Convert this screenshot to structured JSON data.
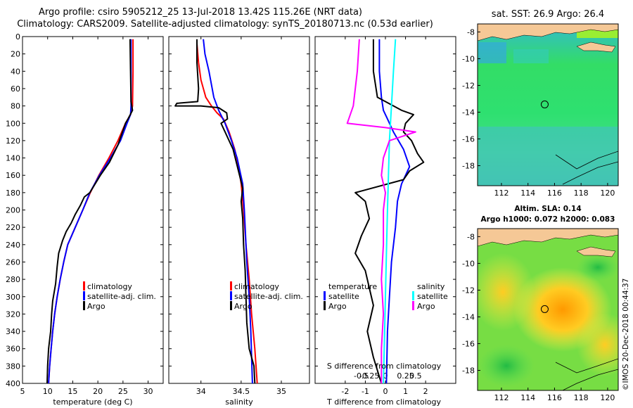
{
  "figure": {
    "title_line1": "Argo profile: csiro 5905212_25 13-Jul-2018 13.42S 115.26E (NRT data)",
    "title_line2": "Climatology: CARS2009. Satellite-adjusted climatology: synTS_20180713.nc (0.53d earlier)",
    "credit": "©IMOS 20-Dec-2018 00:44:37"
  },
  "colors": {
    "climatology": "#ff0000",
    "satellite": "#0000ff",
    "argo": "#000000",
    "salinity_diff": "#ff00ff",
    "satellite_sal_diff": "#00ffff",
    "sst_map": "#33ee33",
    "land": "#f5c896"
  },
  "chart_data": [
    {
      "type": "line",
      "id": "temperature",
      "xlabel": "temperature (deg C)",
      "ylabel": "",
      "xlim": [
        5,
        33
      ],
      "ylim": [
        400,
        0
      ],
      "xticks": [
        "5",
        "10",
        "15",
        "20",
        "25",
        "30"
      ],
      "xtick_values": [
        5,
        10,
        15,
        20,
        25,
        30
      ],
      "yticks": [
        "0",
        "20",
        "40",
        "60",
        "80",
        "100",
        "120",
        "140",
        "160",
        "180",
        "200",
        "220",
        "240",
        "260",
        "280",
        "300",
        "320",
        "340",
        "360",
        "380",
        "400"
      ],
      "legend": [
        "climatology",
        "satellite-adj. clim.",
        "Argo"
      ],
      "series": [
        {
          "name": "climatology",
          "color": "#ff0000",
          "points": [
            [
              27.0,
              3
            ],
            [
              27.0,
              40
            ],
            [
              26.9,
              80
            ],
            [
              26.5,
              90
            ],
            [
              25.5,
              100
            ],
            [
              24.0,
              120
            ],
            [
              22.2,
              140
            ],
            [
              20.2,
              160
            ],
            [
              18.5,
              180
            ],
            [
              17.0,
              200
            ],
            [
              15.5,
              220
            ],
            [
              14.0,
              240
            ],
            [
              13.2,
              260
            ],
            [
              12.5,
              280
            ],
            [
              11.9,
              300
            ],
            [
              11.4,
              320
            ],
            [
              11.0,
              340
            ],
            [
              10.7,
              360
            ],
            [
              10.4,
              380
            ],
            [
              10.2,
              400
            ]
          ]
        },
        {
          "name": "satellite-adj. clim.",
          "color": "#0000ff",
          "points": [
            [
              26.6,
              3
            ],
            [
              26.6,
              40
            ],
            [
              26.6,
              80
            ],
            [
              26.5,
              90
            ],
            [
              25.8,
              100
            ],
            [
              24.5,
              120
            ],
            [
              22.5,
              140
            ],
            [
              20.3,
              160
            ],
            [
              18.4,
              180
            ],
            [
              17.0,
              200
            ],
            [
              15.5,
              220
            ],
            [
              14.0,
              240
            ],
            [
              13.2,
              260
            ],
            [
              12.5,
              280
            ],
            [
              11.9,
              300
            ],
            [
              11.4,
              320
            ],
            [
              11.0,
              340
            ],
            [
              10.7,
              360
            ],
            [
              10.4,
              380
            ],
            [
              10.2,
              400
            ]
          ]
        },
        {
          "name": "Argo",
          "color": "#000000",
          "points": [
            [
              26.4,
              3
            ],
            [
              26.5,
              40
            ],
            [
              26.6,
              75
            ],
            [
              26.9,
              85
            ],
            [
              26.0,
              95
            ],
            [
              25.5,
              100
            ],
            [
              24.0,
              125
            ],
            [
              22.3,
              145
            ],
            [
              20.5,
              160
            ],
            [
              18.4,
              180
            ],
            [
              17.3,
              185
            ],
            [
              16.5,
              195
            ],
            [
              15.5,
              205
            ],
            [
              14.7,
              215
            ],
            [
              13.7,
              225
            ],
            [
              13.0,
              235
            ],
            [
              12.2,
              250
            ],
            [
              11.9,
              265
            ],
            [
              11.6,
              285
            ],
            [
              11.0,
              305
            ],
            [
              10.8,
              320
            ],
            [
              10.6,
              340
            ],
            [
              10.2,
              360
            ],
            [
              10.0,
              380
            ],
            [
              9.9,
              400
            ]
          ]
        }
      ]
    },
    {
      "type": "line",
      "id": "salinity",
      "xlabel": "salinity",
      "ylabel": "",
      "xlim": [
        33.6,
        35.35
      ],
      "ylim": [
        400,
        0
      ],
      "xticks": [
        "34",
        "34.5",
        "35"
      ],
      "xtick_values": [
        34,
        34.5,
        35
      ],
      "legend": [
        "climatology",
        "satellite-adj. clim.",
        "Argo"
      ],
      "series": [
        {
          "name": "climatology",
          "color": "#ff0000",
          "points": [
            [
              33.95,
              8
            ],
            [
              33.97,
              30
            ],
            [
              34.0,
              50
            ],
            [
              34.06,
              70
            ],
            [
              34.13,
              80
            ],
            [
              34.2,
              88
            ],
            [
              34.28,
              95
            ],
            [
              34.35,
              110
            ],
            [
              34.42,
              130
            ],
            [
              34.47,
              150
            ],
            [
              34.5,
              170
            ],
            [
              34.53,
              200
            ],
            [
              34.56,
              240
            ],
            [
              34.6,
              280
            ],
            [
              34.63,
              320
            ],
            [
              34.67,
              360
            ],
            [
              34.7,
              400
            ]
          ]
        },
        {
          "name": "satellite-adj. clim.",
          "color": "#0000ff",
          "points": [
            [
              34.03,
              3
            ],
            [
              34.05,
              20
            ],
            [
              34.1,
              40
            ],
            [
              34.16,
              70
            ],
            [
              34.22,
              85
            ],
            [
              34.3,
              100
            ],
            [
              34.38,
              120
            ],
            [
              34.45,
              140
            ],
            [
              34.52,
              170
            ],
            [
              34.54,
              200
            ],
            [
              34.57,
              260
            ],
            [
              34.6,
              300
            ],
            [
              34.62,
              340
            ],
            [
              34.64,
              400
            ]
          ]
        },
        {
          "name": "Argo",
          "color": "#000000",
          "points": [
            [
              33.95,
              3
            ],
            [
              33.95,
              30
            ],
            [
              33.97,
              60
            ],
            [
              33.96,
              75
            ],
            [
              33.7,
              77
            ],
            [
              33.68,
              80
            ],
            [
              34.0,
              80
            ],
            [
              34.22,
              82
            ],
            [
              34.32,
              88
            ],
            [
              34.33,
              95
            ],
            [
              34.25,
              100
            ],
            [
              34.3,
              110
            ],
            [
              34.35,
              120
            ],
            [
              34.4,
              130
            ],
            [
              34.44,
              145
            ],
            [
              34.48,
              160
            ],
            [
              34.52,
              175
            ],
            [
              34.5,
              190
            ],
            [
              34.52,
              210
            ],
            [
              34.53,
              240
            ],
            [
              34.55,
              270
            ],
            [
              34.56,
              300
            ],
            [
              34.57,
              330
            ],
            [
              34.6,
              360
            ],
            [
              34.66,
              380
            ],
            [
              34.67,
              400
            ]
          ]
        }
      ]
    },
    {
      "type": "line",
      "id": "difference",
      "xlabel": "T difference from climatology",
      "xlabel_top": "S difference from climatology",
      "xlim": [
        -3.5,
        3.5
      ],
      "ylim": [
        400,
        0
      ],
      "xticks": [
        "-2",
        "-1",
        "0",
        "1",
        "2"
      ],
      "xtick_values": [
        -2,
        -1,
        0,
        1,
        2
      ],
      "xticks_sal": [
        "-0.5",
        "-0.25",
        "0",
        "0.25",
        "0.5"
      ],
      "legend_temperature": {
        "heading": "temperature",
        "items": [
          "satellite",
          "Argo"
        ]
      },
      "legend_salinity": {
        "heading": "salinity",
        "items": [
          "satellite",
          "Argo"
        ]
      },
      "series": [
        {
          "name": "temperature satellite",
          "color": "#0000ff",
          "points": [
            [
              -0.3,
              3
            ],
            [
              -0.3,
              40
            ],
            [
              -0.2,
              70
            ],
            [
              -0.1,
              85
            ],
            [
              0.1,
              95
            ],
            [
              0.4,
              110
            ],
            [
              0.9,
              130
            ],
            [
              1.2,
              150
            ],
            [
              0.8,
              170
            ],
            [
              0.6,
              190
            ],
            [
              0.5,
              220
            ],
            [
              0.3,
              260
            ],
            [
              0.2,
              300
            ],
            [
              0.1,
              340
            ],
            [
              0.05,
              400
            ]
          ]
        },
        {
          "name": "temperature Argo",
          "color": "#000000",
          "points": [
            [
              -0.6,
              3
            ],
            [
              -0.6,
              40
            ],
            [
              -0.4,
              70
            ],
            [
              0.8,
              85
            ],
            [
              1.4,
              90
            ],
            [
              1.0,
              100
            ],
            [
              0.9,
              110
            ],
            [
              1.3,
              120
            ],
            [
              1.6,
              135
            ],
            [
              1.9,
              145
            ],
            [
              1.2,
              155
            ],
            [
              0.9,
              165
            ],
            [
              -1.5,
              180
            ],
            [
              -1.0,
              190
            ],
            [
              -0.8,
              210
            ],
            [
              -1.2,
              230
            ],
            [
              -1.5,
              250
            ],
            [
              -1.0,
              270
            ],
            [
              -0.8,
              290
            ],
            [
              -0.6,
              310
            ],
            [
              -0.9,
              340
            ],
            [
              -0.6,
              370
            ],
            [
              -0.2,
              400
            ]
          ]
        },
        {
          "name": "salinity satellite",
          "color": "#00ffff",
          "points": [
            [
              0.5,
              3
            ],
            [
              0.4,
              40
            ],
            [
              0.3,
              80
            ],
            [
              0.2,
              120
            ],
            [
              0.15,
              160
            ],
            [
              0.1,
              200
            ],
            [
              0.05,
              250
            ],
            [
              0.0,
              300
            ],
            [
              -0.05,
              350
            ],
            [
              -0.1,
              400
            ]
          ]
        },
        {
          "name": "salinity Argo",
          "color": "#ff00ff",
          "points": [
            [
              -1.3,
              3
            ],
            [
              -1.4,
              40
            ],
            [
              -1.6,
              80
            ],
            [
              -1.9,
              100
            ],
            [
              0.0,
              105
            ],
            [
              1.5,
              110
            ],
            [
              0.2,
              120
            ],
            [
              -0.1,
              140
            ],
            [
              -0.2,
              160
            ],
            [
              0.0,
              180
            ],
            [
              -0.1,
              200
            ],
            [
              -0.1,
              240
            ],
            [
              -0.2,
              280
            ],
            [
              -0.1,
              320
            ],
            [
              -0.2,
              360
            ],
            [
              -0.2,
              400
            ]
          ]
        }
      ]
    },
    {
      "type": "heatmap",
      "id": "sst_map",
      "title": "sat. SST: 26.9 Argo: 26.4",
      "xticks": [
        "112",
        "114",
        "116",
        "118",
        "120"
      ],
      "yticks": [
        "-8",
        "-10",
        "-12",
        "-14",
        "-16",
        "-18"
      ],
      "xlim": [
        110.2,
        120.8
      ],
      "ylim": [
        -19.5,
        -7.4
      ],
      "argo_position": [
        115.26,
        -13.42
      ]
    },
    {
      "type": "heatmap",
      "id": "sla_map",
      "title_line1": "Altim. SLA: 0.14",
      "title_line2": "Argo h1000: 0.072 h2000: 0.083",
      "xticks": [
        "112",
        "114",
        "116",
        "118",
        "120"
      ],
      "yticks": [
        "-8",
        "-10",
        "-12",
        "-14",
        "-16",
        "-18"
      ],
      "xlim": [
        110.2,
        120.8
      ],
      "ylim": [
        -19.5,
        -7.4
      ],
      "argo_position": [
        115.26,
        -13.42
      ]
    }
  ]
}
